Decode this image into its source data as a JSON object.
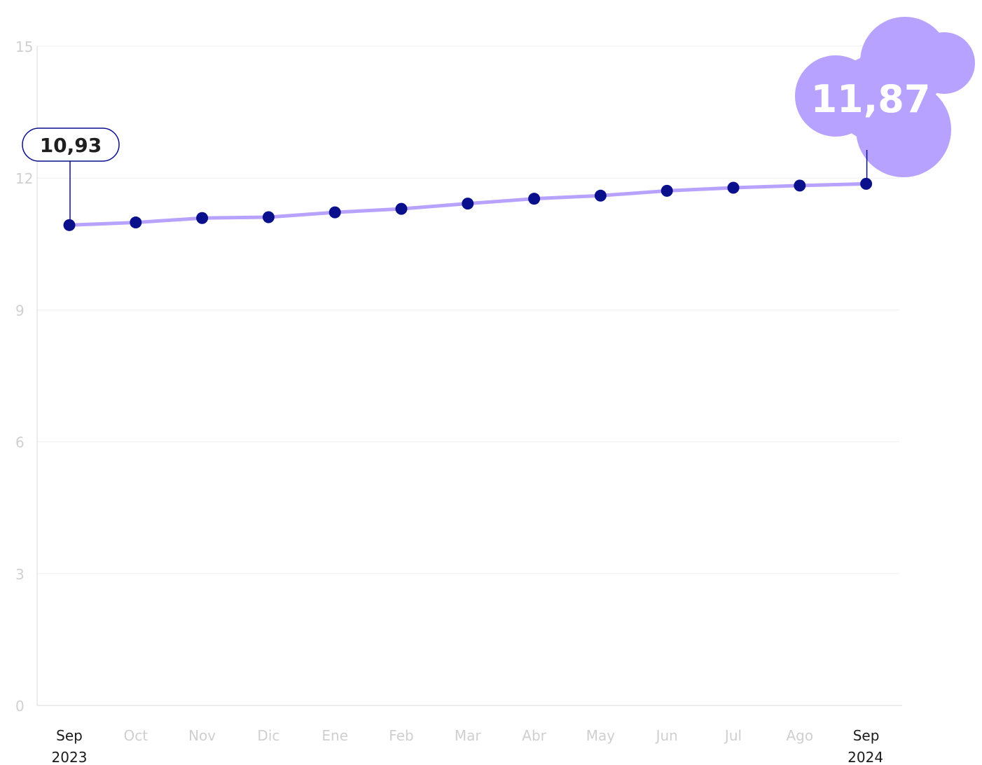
{
  "chart_data": {
    "type": "line",
    "categories": [
      "Sep",
      "Oct",
      "Nov",
      "Dic",
      "Ene",
      "Feb",
      "Mar",
      "Abr",
      "May",
      "Jun",
      "Jul",
      "Ago",
      "Sep"
    ],
    "category_years": [
      "2023",
      "",
      "",
      "",
      "",
      "",
      "",
      "",
      "",
      "",
      "",
      "",
      "2024"
    ],
    "values": [
      10.93,
      10.99,
      11.09,
      11.11,
      11.22,
      11.3,
      11.42,
      11.53,
      11.6,
      11.71,
      11.78,
      11.83,
      11.87
    ],
    "ylim": [
      0,
      15
    ],
    "yticks": [
      "0",
      "3",
      "6",
      "9",
      "12",
      "15"
    ],
    "grid": true,
    "annotations": {
      "start_label": "10,93",
      "end_label": "11,87"
    }
  },
  "colors": {
    "line": "#b7a2ff",
    "point": "#0a0f8c",
    "grid": "#efefef",
    "axis": "#d8d8d8",
    "blob": "#b7a2ff",
    "callout_border": "#0a0f8c",
    "callout_text": "#1f1f1f",
    "blob_text": "#ffffff"
  }
}
